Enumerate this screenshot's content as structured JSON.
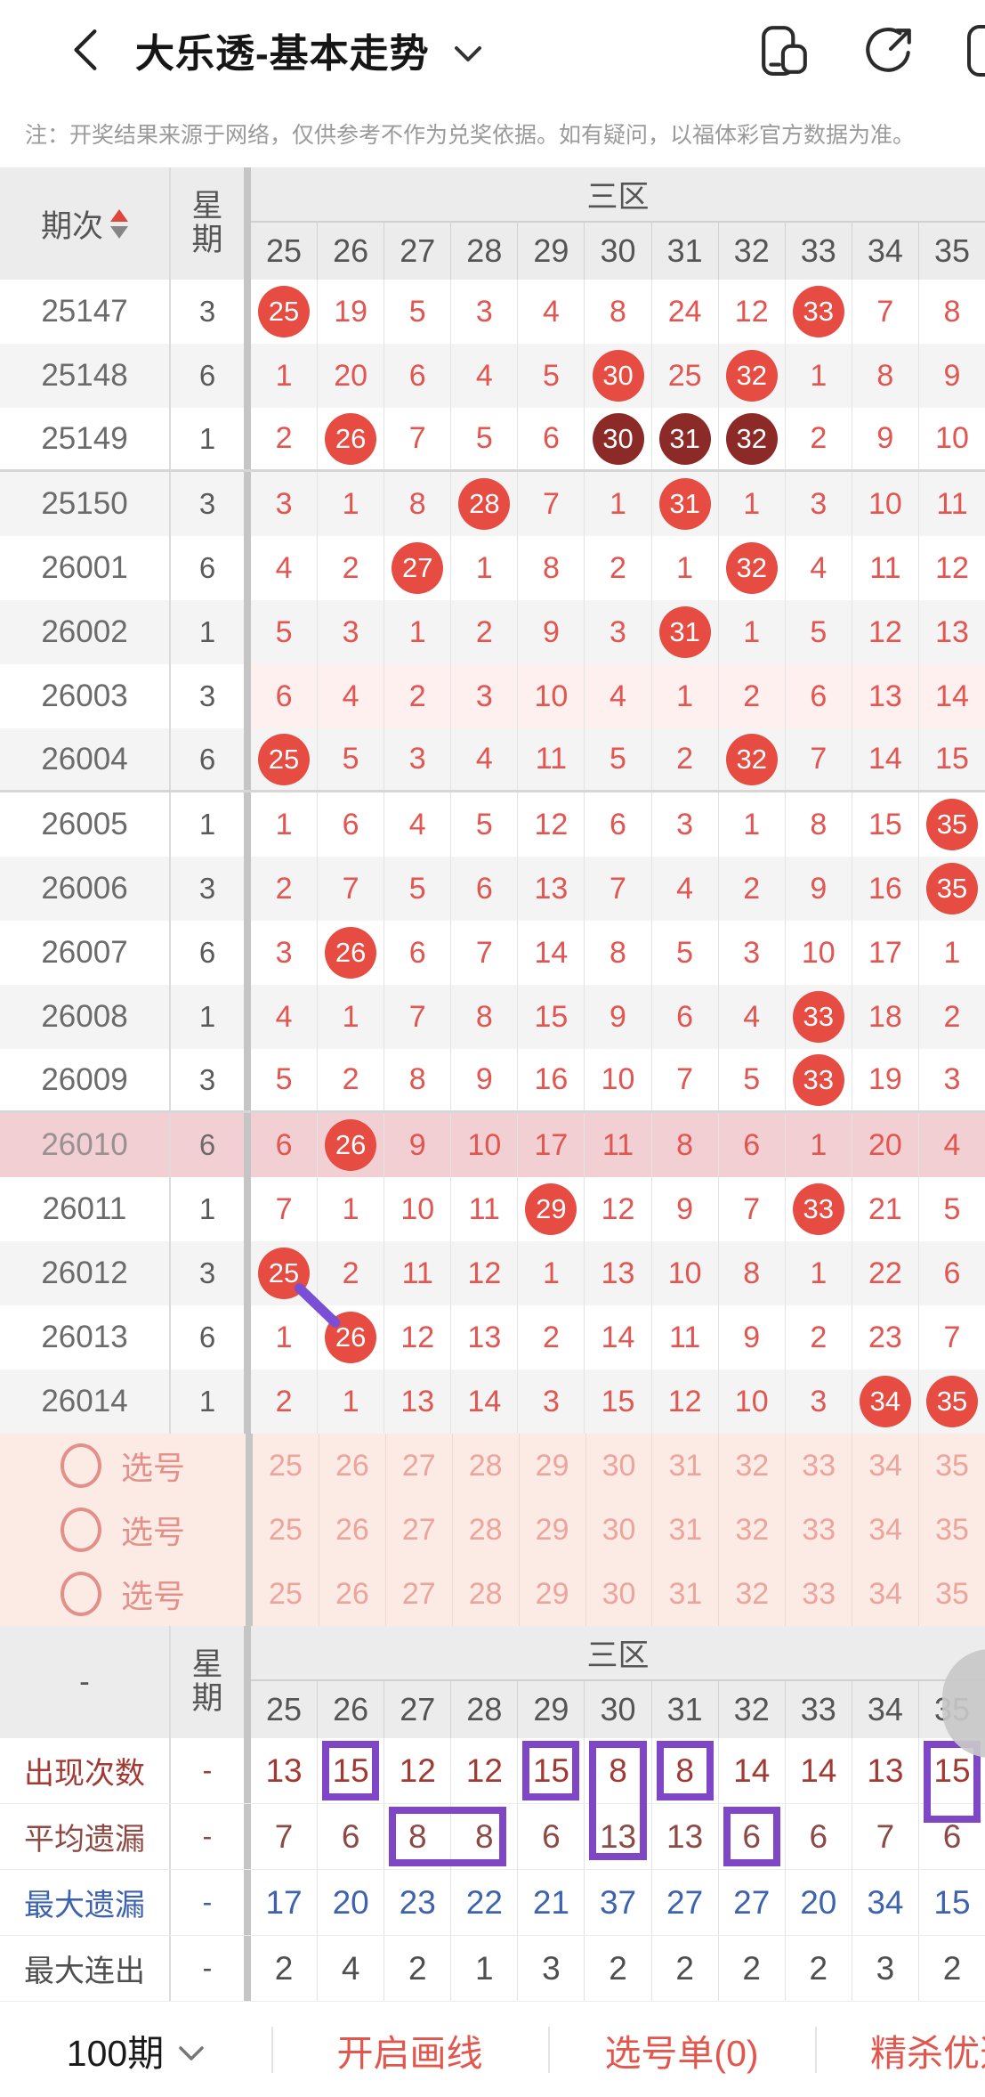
{
  "colors": {
    "accent_red": "#e64c42",
    "dark_circle": "#8b2a27",
    "number_red": "#e25550",
    "purple_box": "#7f47c5",
    "line_purple": "#7a4fd6",
    "highlight_row": "#f2cfd3",
    "pick_row_bg": "#fcebe4",
    "appear_color": "#a23a34",
    "avg_color": "#8d4a45",
    "max_miss_color": "#3e63ae",
    "max_streak_color": "#4f4f4f",
    "bar_action_red": "#e2574d"
  },
  "topbar": {
    "title": "大乐透-基本走势",
    "icons": [
      "back-icon",
      "chevron-down-icon",
      "multi-window-icon",
      "share-icon",
      "more-partial-icon"
    ]
  },
  "note": "注：开奖结果来源于网络，仅供参考不作为兑奖依据。如有疑问，以福体彩官方数据为准。",
  "chart": {
    "zone_label": "三区",
    "period_header": "期次",
    "week_header_top": "星",
    "week_header_bottom": "期",
    "columns": [
      "25",
      "26",
      "27",
      "28",
      "29",
      "30",
      "31",
      "32",
      "33",
      "34",
      "35"
    ],
    "rows": [
      {
        "period": "25147",
        "week": "3",
        "values": [
          "25",
          "19",
          "5",
          "3",
          "4",
          "8",
          "24",
          "12",
          "33",
          "7",
          "8"
        ],
        "circles": [
          0,
          8
        ],
        "dark": []
      },
      {
        "period": "25148",
        "week": "6",
        "values": [
          "1",
          "20",
          "6",
          "4",
          "5",
          "30",
          "25",
          "32",
          "1",
          "8",
          "9"
        ],
        "circles": [
          5,
          7
        ],
        "dark": []
      },
      {
        "period": "25149",
        "week": "1",
        "values": [
          "2",
          "26",
          "7",
          "5",
          "6",
          "30",
          "31",
          "32",
          "2",
          "9",
          "10"
        ],
        "circles": [
          1,
          5,
          6,
          7
        ],
        "dark": [
          5,
          6,
          7
        ]
      },
      {
        "period": "25150",
        "week": "3",
        "values": [
          "3",
          "1",
          "8",
          "28",
          "7",
          "1",
          "31",
          "1",
          "3",
          "10",
          "11"
        ],
        "circles": [
          3,
          6
        ],
        "dark": []
      },
      {
        "period": "26001",
        "week": "6",
        "values": [
          "4",
          "2",
          "27",
          "1",
          "8",
          "2",
          "1",
          "32",
          "4",
          "11",
          "12"
        ],
        "circles": [
          2,
          7
        ],
        "dark": []
      },
      {
        "period": "26002",
        "week": "1",
        "values": [
          "5",
          "3",
          "1",
          "2",
          "9",
          "3",
          "31",
          "1",
          "5",
          "12",
          "13"
        ],
        "circles": [
          6
        ],
        "dark": []
      },
      {
        "period": "26003",
        "week": "3",
        "values": [
          "6",
          "4",
          "2",
          "3",
          "10",
          "4",
          "1",
          "2",
          "6",
          "13",
          "14"
        ],
        "circles": [],
        "dark": []
      },
      {
        "period": "26004",
        "week": "6",
        "values": [
          "25",
          "5",
          "3",
          "4",
          "11",
          "5",
          "2",
          "32",
          "7",
          "14",
          "15"
        ],
        "circles": [
          0,
          7
        ],
        "dark": []
      },
      {
        "period": "26005",
        "week": "1",
        "values": [
          "1",
          "6",
          "4",
          "5",
          "12",
          "6",
          "3",
          "1",
          "8",
          "15",
          "35"
        ],
        "circles": [
          10
        ],
        "dark": []
      },
      {
        "period": "26006",
        "week": "3",
        "values": [
          "2",
          "7",
          "5",
          "6",
          "13",
          "7",
          "4",
          "2",
          "9",
          "16",
          "35"
        ],
        "circles": [
          10
        ],
        "dark": []
      },
      {
        "period": "26007",
        "week": "6",
        "values": [
          "3",
          "26",
          "6",
          "7",
          "14",
          "8",
          "5",
          "3",
          "10",
          "17",
          "1"
        ],
        "circles": [
          1
        ],
        "dark": []
      },
      {
        "period": "26008",
        "week": "1",
        "values": [
          "4",
          "1",
          "7",
          "8",
          "15",
          "9",
          "6",
          "4",
          "33",
          "18",
          "2"
        ],
        "circles": [
          8
        ],
        "dark": []
      },
      {
        "period": "26009",
        "week": "3",
        "values": [
          "5",
          "2",
          "8",
          "9",
          "16",
          "10",
          "7",
          "5",
          "33",
          "19",
          "3"
        ],
        "circles": [
          8
        ],
        "dark": []
      },
      {
        "period": "26010",
        "week": "6",
        "values": [
          "6",
          "26",
          "9",
          "10",
          "17",
          "11",
          "8",
          "6",
          "1",
          "20",
          "4"
        ],
        "circles": [
          1
        ],
        "dark": []
      },
      {
        "period": "26011",
        "week": "1",
        "values": [
          "7",
          "1",
          "10",
          "11",
          "29",
          "12",
          "9",
          "7",
          "33",
          "21",
          "5"
        ],
        "circles": [
          4,
          8
        ],
        "dark": []
      },
      {
        "period": "26012",
        "week": "3",
        "values": [
          "25",
          "2",
          "11",
          "12",
          "1",
          "13",
          "10",
          "8",
          "1",
          "22",
          "6"
        ],
        "circles": [
          0
        ],
        "dark": []
      },
      {
        "period": "26013",
        "week": "6",
        "values": [
          "1",
          "26",
          "12",
          "13",
          "2",
          "14",
          "11",
          "9",
          "2",
          "23",
          "7"
        ],
        "circles": [
          1
        ],
        "dark": []
      },
      {
        "period": "26014",
        "week": "1",
        "values": [
          "2",
          "1",
          "13",
          "14",
          "3",
          "15",
          "12",
          "10",
          "3",
          "34",
          "35"
        ],
        "circles": [
          9,
          10
        ],
        "dark": []
      }
    ],
    "group_breaks_after": [
      "25149",
      "26004",
      "26009"
    ],
    "highlight_period": "26010",
    "tint_period": "26003",
    "pick_rows": [
      {
        "label": "选号",
        "numbers": [
          "25",
          "26",
          "27",
          "28",
          "29",
          "30",
          "31",
          "32",
          "33",
          "34",
          "35"
        ]
      },
      {
        "label": "选号",
        "numbers": [
          "25",
          "26",
          "27",
          "28",
          "29",
          "30",
          "31",
          "32",
          "33",
          "34",
          "35"
        ]
      },
      {
        "label": "选号",
        "numbers": [
          "25",
          "26",
          "27",
          "28",
          "29",
          "30",
          "31",
          "32",
          "33",
          "34",
          "35"
        ]
      }
    ],
    "drawn_line": {
      "from_period": "26012",
      "from_col": 0,
      "to_period": "26013",
      "to_col": 1
    }
  },
  "stats": {
    "left_header": "-",
    "zone_label": "三区",
    "columns": [
      "25",
      "26",
      "27",
      "28",
      "29",
      "30",
      "31",
      "32",
      "33",
      "34",
      "35"
    ],
    "rows": [
      {
        "label": "出现次数",
        "dash": "-",
        "theme": "appear",
        "values": [
          "13",
          "15",
          "12",
          "12",
          "15",
          "8",
          "8",
          "14",
          "14",
          "13",
          "15"
        ],
        "boxes": [
          {
            "col": 1,
            "type": "single"
          },
          {
            "col": 4,
            "type": "single"
          },
          {
            "col": 5,
            "type": "tall"
          },
          {
            "col": 6,
            "type": "single"
          },
          {
            "col": 10,
            "type": "mid"
          }
        ]
      },
      {
        "label": "平均遗漏",
        "dash": "-",
        "theme": "avg",
        "values": [
          "7",
          "6",
          "8",
          "8",
          "6",
          "13",
          "13",
          "6",
          "6",
          "7",
          "6"
        ],
        "boxes": [
          {
            "col": 2,
            "type": "wide"
          },
          {
            "col": 7,
            "type": "single"
          }
        ]
      },
      {
        "label": "最大遗漏",
        "dash": "-",
        "theme": "max-miss",
        "values": [
          "17",
          "20",
          "23",
          "22",
          "21",
          "37",
          "27",
          "27",
          "20",
          "34",
          "15"
        ],
        "boxes": []
      },
      {
        "label": "最大连出",
        "dash": "-",
        "theme": "max-streak",
        "values": [
          "2",
          "4",
          "2",
          "1",
          "3",
          "2",
          "2",
          "2",
          "2",
          "3",
          "2"
        ],
        "boxes": []
      }
    ]
  },
  "bottombar": {
    "period_selector": "100期",
    "items": [
      "开启画线",
      "选号单(0)",
      "精杀优选"
    ]
  }
}
